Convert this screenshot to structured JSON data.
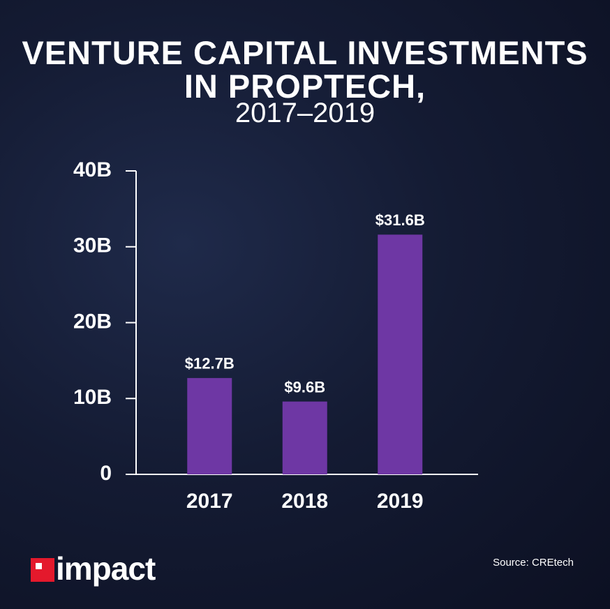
{
  "chart_data": {
    "type": "bar",
    "title": "VENTURE CAPITAL INVESTMENTS IN PROPTECH,",
    "subtitle": "2017–2019",
    "categories": [
      "2017",
      "2018",
      "2019"
    ],
    "values": [
      12.7,
      9.6,
      31.6
    ],
    "value_labels": [
      "$12.7B",
      "$9.6B",
      "$31.6B"
    ],
    "color": "#6e37a4",
    "ylim": [
      0,
      40
    ],
    "yticks": [
      0,
      {
        "value": 10,
        "label": "10B"
      },
      {
        "value": 20,
        "label": "20B"
      },
      {
        "value": 30,
        "label": "30B"
      },
      {
        "value": 40,
        "label": "40B"
      }
    ],
    "logo": "impact",
    "source": "Source: CREtech"
  }
}
